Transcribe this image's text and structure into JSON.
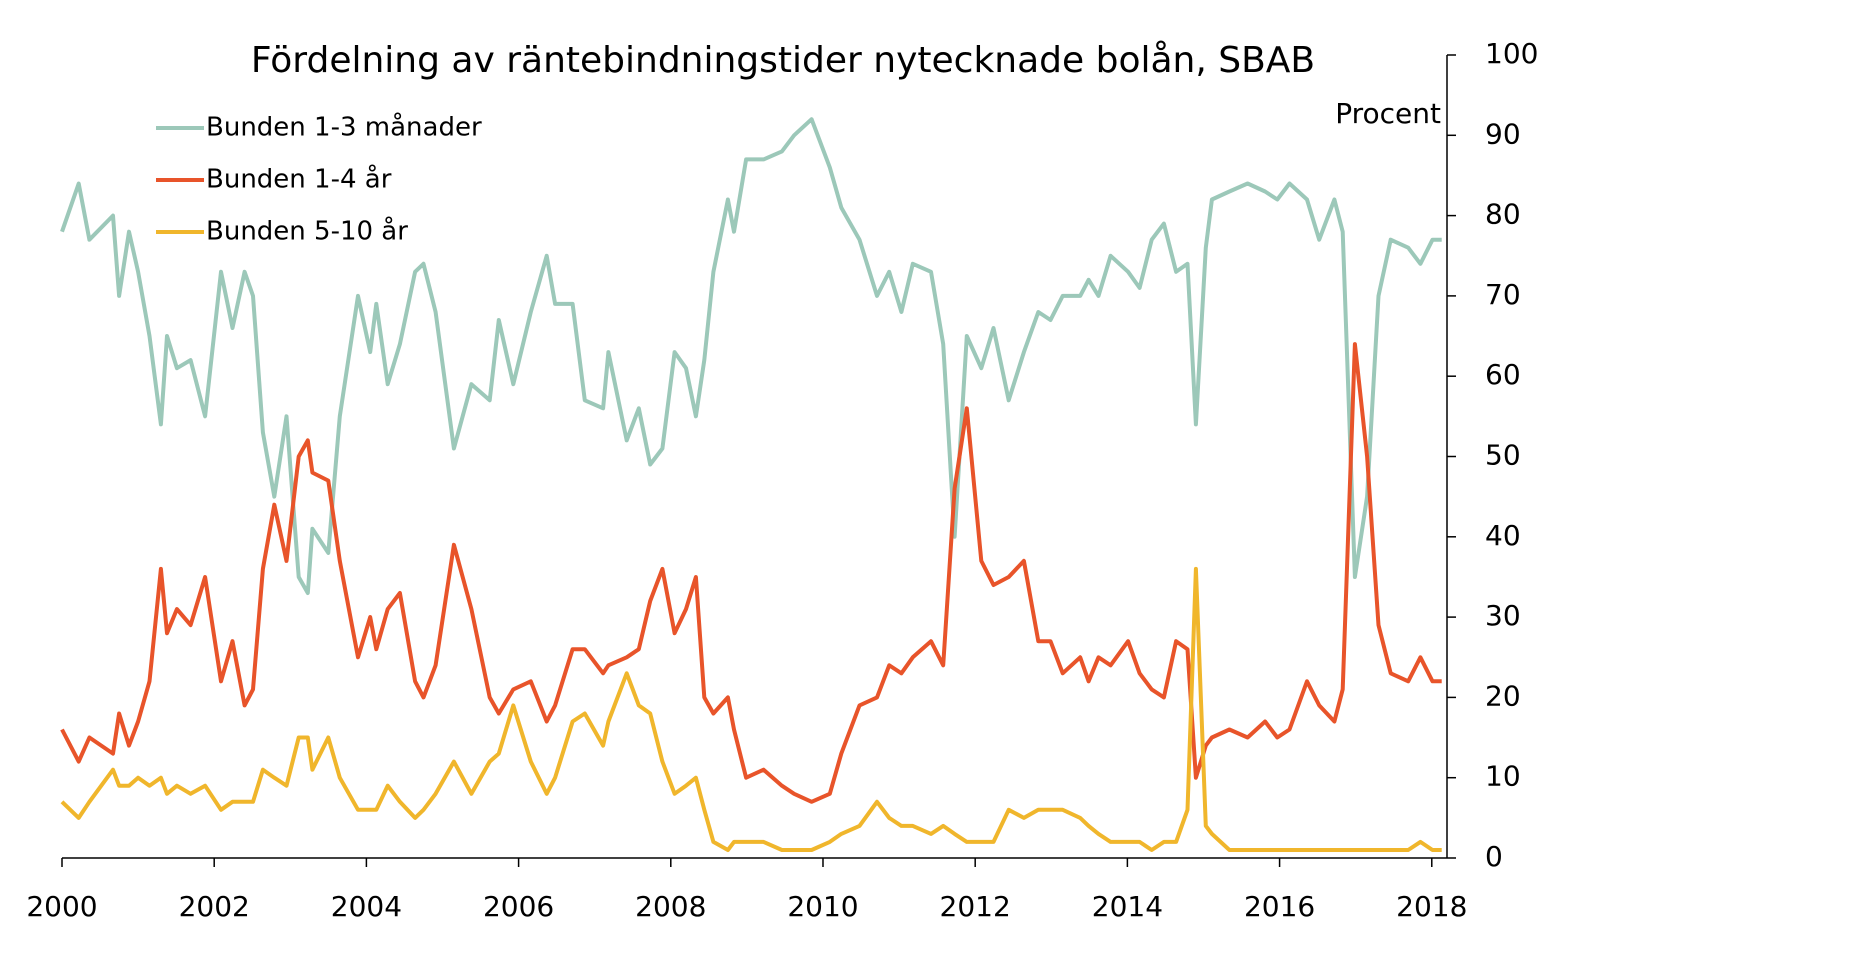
{
  "chart_data": {
    "type": "line",
    "title": "Fördelning av räntebindningstider nytecknade bolån, SBAB",
    "y_label": "Procent",
    "x": [
      2000.0,
      2000.22,
      2000.36,
      2000.67,
      2000.75,
      2000.88,
      2001.0,
      2001.15,
      2001.3,
      2001.38,
      2001.51,
      2001.69,
      2001.88,
      2002.09,
      2002.24,
      2002.4,
      2002.51,
      2002.64,
      2002.79,
      2002.95,
      2003.11,
      2003.23,
      2003.29,
      2003.5,
      2003.65,
      2003.89,
      2004.05,
      2004.13,
      2004.28,
      2004.44,
      2004.64,
      2004.75,
      2004.91,
      2005.15,
      2005.38,
      2005.62,
      2005.74,
      2005.93,
      2006.16,
      2006.37,
      2006.48,
      2006.71,
      2006.87,
      2007.11,
      2007.18,
      2007.42,
      2007.58,
      2007.73,
      2007.89,
      2008.05,
      2008.2,
      2008.33,
      2008.44,
      2008.56,
      2008.75,
      2008.83,
      2008.99,
      2009.22,
      2009.46,
      2009.62,
      2009.85,
      2010.09,
      2010.24,
      2010.48,
      2010.71,
      2010.87,
      2011.03,
      2011.18,
      2011.42,
      2011.58,
      2011.73,
      2011.89,
      2012.08,
      2012.24,
      2012.44,
      2012.64,
      2012.83,
      2012.99,
      2013.15,
      2013.38,
      2013.49,
      2013.62,
      2013.78,
      2014.01,
      2014.16,
      2014.32,
      2014.48,
      2014.64,
      2014.79,
      2014.9,
      2015.03,
      2015.11,
      2015.34,
      2015.58,
      2015.81,
      2015.97,
      2016.13,
      2016.36,
      2016.52,
      2016.72,
      2016.83,
      2016.99,
      2017.15,
      2017.3,
      2017.46,
      2017.69,
      2017.85,
      2018.01,
      2018.13
    ],
    "series": [
      {
        "name": "Bunden 1-3 månader",
        "color": "#9cc8b9",
        "values": [
          78,
          84,
          77,
          80,
          70,
          78,
          73,
          65,
          54,
          65,
          61,
          62,
          55,
          73,
          66,
          73,
          70,
          53,
          45,
          55,
          35,
          33,
          41,
          38,
          55,
          70,
          63,
          69,
          59,
          64,
          73,
          74,
          68,
          51,
          59,
          57,
          67,
          59,
          68,
          75,
          69,
          69,
          57,
          56,
          63,
          52,
          56,
          49,
          51,
          63,
          61,
          55,
          62,
          73,
          82,
          78,
          87,
          87,
          88,
          90,
          92,
          86,
          81,
          77,
          70,
          73,
          68,
          74,
          73,
          64,
          40,
          65,
          61,
          66,
          57,
          63,
          68,
          67,
          70,
          70,
          72,
          70,
          75,
          73,
          71,
          77,
          79,
          73,
          74,
          54,
          76,
          82,
          83,
          84,
          83,
          82,
          84,
          82,
          77,
          82,
          78,
          35,
          45,
          70,
          77,
          76,
          74,
          77,
          77
        ]
      },
      {
        "name": "Bunden 1-4 år",
        "color": "#e8542a",
        "values": [
          16,
          12,
          15,
          13,
          18,
          14,
          17,
          22,
          36,
          28,
          31,
          29,
          35,
          22,
          27,
          19,
          21,
          36,
          44,
          37,
          50,
          52,
          48,
          47,
          37,
          25,
          30,
          26,
          31,
          33,
          22,
          20,
          24,
          39,
          31,
          20,
          18,
          21,
          22,
          17,
          19,
          26,
          26,
          23,
          24,
          25,
          26,
          32,
          36,
          28,
          31,
          35,
          20,
          18,
          20,
          16,
          10,
          11,
          9,
          8,
          7,
          8,
          13,
          19,
          20,
          24,
          23,
          25,
          27,
          24,
          46,
          56,
          37,
          34,
          35,
          37,
          27,
          27,
          23,
          25,
          22,
          25,
          24,
          27,
          23,
          21,
          20,
          27,
          26,
          10,
          14,
          15,
          16,
          15,
          17,
          15,
          16,
          22,
          19,
          17,
          21,
          64,
          50,
          29,
          23,
          22,
          25,
          22,
          22
        ]
      },
      {
        "name": "Bunden 5-10 år",
        "color": "#f0b62c",
        "values": [
          7,
          5,
          7,
          11,
          9,
          9,
          10,
          9,
          10,
          8,
          9,
          8,
          9,
          6,
          7,
          7,
          7,
          11,
          10,
          9,
          15,
          15,
          11,
          15,
          10,
          6,
          6,
          6,
          9,
          7,
          5,
          6,
          8,
          12,
          8,
          12,
          13,
          19,
          12,
          8,
          10,
          17,
          18,
          14,
          17,
          23,
          19,
          18,
          12,
          8,
          9,
          10,
          6,
          2,
          1,
          2,
          2,
          2,
          1,
          1,
          1,
          2,
          3,
          4,
          7,
          5,
          4,
          4,
          3,
          4,
          3,
          2,
          2,
          2,
          6,
          5,
          6,
          6,
          6,
          5,
          4,
          3,
          2,
          2,
          2,
          1,
          2,
          2,
          6,
          36,
          4,
          3,
          1,
          1,
          1,
          1,
          1,
          1,
          1,
          1,
          1,
          1,
          1,
          1,
          1,
          1,
          2,
          1,
          1
        ]
      }
    ],
    "xlim": [
      2000,
      2018.2
    ],
    "xticks": [
      2000,
      2002,
      2004,
      2006,
      2008,
      2010,
      2012,
      2014,
      2016,
      2018
    ],
    "ylim": [
      0,
      100
    ],
    "yticks": [
      0,
      10,
      20,
      30,
      40,
      50,
      60,
      70,
      80,
      90,
      100
    ],
    "y_axis_side": "right",
    "legend": "top-left"
  }
}
